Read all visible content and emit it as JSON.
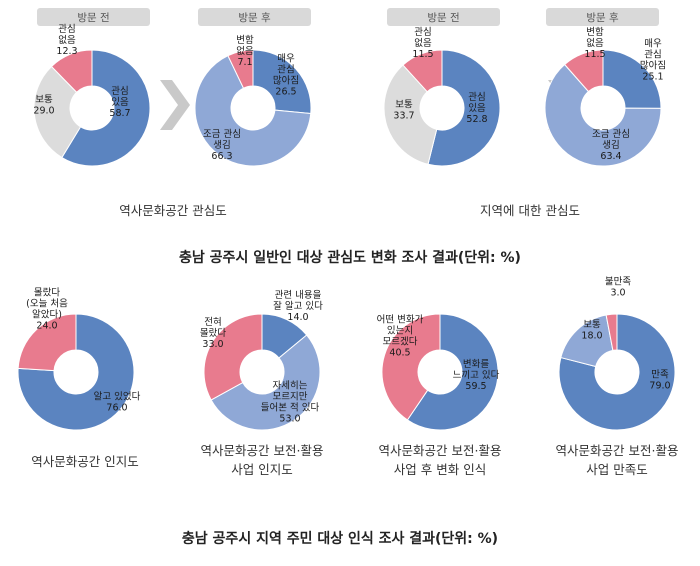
{
  "colors": {
    "blue": "#5b84c0",
    "light_blue": "#8fa8d6",
    "pink": "#e87b8e",
    "gray": "#dcdcdc",
    "arrow": "#c9c9c9",
    "tab": "#d9d9d9"
  },
  "section1": {
    "title": "충남 공주시 일반인 대상 관심도 변화 조사 결과(단위: %)",
    "groups": [
      {
        "caption": "역사문화공간 관심도",
        "tabs": [
          "방문 전",
          "방문 후"
        ]
      },
      {
        "caption": "지역에 대한 관심도",
        "tabs": [
          "방문 전",
          "방문 후"
        ]
      }
    ]
  },
  "section2": {
    "title": "충남 공주시 지역 주민 대상 인식 조사 결과(단위: %)",
    "captions": [
      [
        "역사문화공간 인지도"
      ],
      [
        "역사문화공간 보전·활용",
        "사업 인지도"
      ],
      [
        "역사문화공간 보전·활용",
        "사업 후 변화 인식"
      ],
      [
        "역사문화공간 보전·활용",
        "사업 만족도"
      ]
    ]
  },
  "chart_data": [
    {
      "type": "pie",
      "donut": true,
      "subtitle": "방문 전",
      "slices": [
        {
          "label": [
            "관심",
            "있음"
          ],
          "value": 58.7,
          "color": "blue"
        },
        {
          "label": [
            "보통"
          ],
          "value": 29.0,
          "color": "gray"
        },
        {
          "label": [
            "관심",
            "없음"
          ],
          "value": 12.3,
          "color": "pink"
        }
      ]
    },
    {
      "type": "pie",
      "donut": true,
      "subtitle": "방문 후",
      "slices": [
        {
          "label": [
            "매우",
            "관심",
            "많아짐"
          ],
          "value": 26.5,
          "color": "blue"
        },
        {
          "label": [
            "조금 관심",
            "생김"
          ],
          "value": 66.3,
          "color": "light_blue"
        },
        {
          "label": [
            "변함",
            "없음"
          ],
          "value": 7.1,
          "color": "pink"
        }
      ]
    },
    {
      "type": "pie",
      "donut": true,
      "subtitle": "방문 전",
      "slices": [
        {
          "label": [
            "관심",
            "있음"
          ],
          "value": 52.8,
          "color": "blue"
        },
        {
          "label": [
            "보통"
          ],
          "value": 33.7,
          "color": "gray"
        },
        {
          "label": [
            "관심",
            "없음"
          ],
          "value": 11.5,
          "color": "pink"
        }
      ]
    },
    {
      "type": "pie",
      "donut": true,
      "subtitle": "방문 후",
      "slices": [
        {
          "label": [
            "매우",
            "관심",
            "많아짐"
          ],
          "value": 25.1,
          "color": "blue"
        },
        {
          "label": [
            "조금 관심",
            "생김"
          ],
          "value": 63.4,
          "color": "light_blue"
        },
        {
          "label": [
            "변함",
            "없음"
          ],
          "value": 11.5,
          "color": "pink"
        }
      ]
    },
    {
      "type": "pie",
      "donut": true,
      "subtitle": "역사문화공간 인지도",
      "slices": [
        {
          "label": [
            "알고 있었다"
          ],
          "value": 76.0,
          "color": "blue"
        },
        {
          "label": [
            "몰랐다",
            "(오늘 처음",
            "알았다)"
          ],
          "value": 24.0,
          "color": "pink"
        }
      ]
    },
    {
      "type": "pie",
      "donut": true,
      "subtitle": "역사문화공간 보전·활용 사업 인지도",
      "slices": [
        {
          "label": [
            "관련 내용을",
            "잘 알고 있다"
          ],
          "value": 14.0,
          "color": "blue"
        },
        {
          "label": [
            "자세히는",
            "모르지만",
            "들어본 적 있다"
          ],
          "value": 53.0,
          "color": "light_blue"
        },
        {
          "label": [
            "전혀",
            "몰랐다"
          ],
          "value": 33.0,
          "color": "pink"
        }
      ]
    },
    {
      "type": "pie",
      "donut": true,
      "subtitle": "역사문화공간 보전·활용 사업 후 변화 인식",
      "slices": [
        {
          "label": [
            "변화를",
            "느끼고 있다"
          ],
          "value": 59.5,
          "color": "blue"
        },
        {
          "label": [
            "어떤 변화가",
            "있는지",
            "모르겠다"
          ],
          "value": 40.5,
          "color": "pink"
        }
      ]
    },
    {
      "type": "pie",
      "donut": true,
      "subtitle": "역사문화공간 보전·활용 사업 만족도",
      "slices": [
        {
          "label": [
            "만족"
          ],
          "value": 79.0,
          "color": "blue"
        },
        {
          "label": [
            "보통"
          ],
          "value": 18.0,
          "color": "light_blue"
        },
        {
          "label": [
            "불만족"
          ],
          "value": 3.0,
          "color": "pink"
        }
      ]
    }
  ]
}
